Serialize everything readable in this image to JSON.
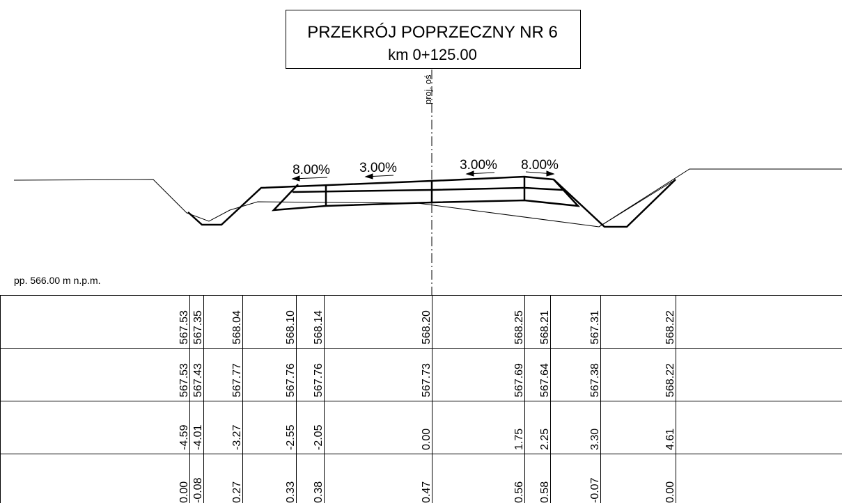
{
  "header": {
    "title": "PRZEKRÓJ POPRZECZNY NR 6",
    "subtitle": "km 0+125.00"
  },
  "axis_label": "proj. oś",
  "slopes": [
    "8.00%",
    "3.00%",
    "3.00%",
    "8.00%"
  ],
  "datum": "pp. 566.00 m n.p.m.",
  "table": {
    "rows": [
      [
        "567.53",
        "567.35",
        "568.04",
        "568.10",
        "568.14",
        "568.20",
        "568.25",
        "568.21",
        "567.31",
        "568.22"
      ],
      [
        "567.53",
        "567.43",
        "567.77",
        "567.76",
        "567.76",
        "567.73",
        "567.69",
        "567.64",
        "567.38",
        "568.22"
      ],
      [
        "-4.59",
        "-4.01",
        "-3.27",
        "-2.55",
        "-2.05",
        "0.00",
        "1.75",
        "2.25",
        "3.30",
        "4.61"
      ],
      [
        "0.00",
        "-0.08",
        "0.27",
        "0.33",
        "0.38",
        "0.47",
        "0.56",
        "0.58",
        "-0.07",
        "0.00"
      ]
    ]
  }
}
